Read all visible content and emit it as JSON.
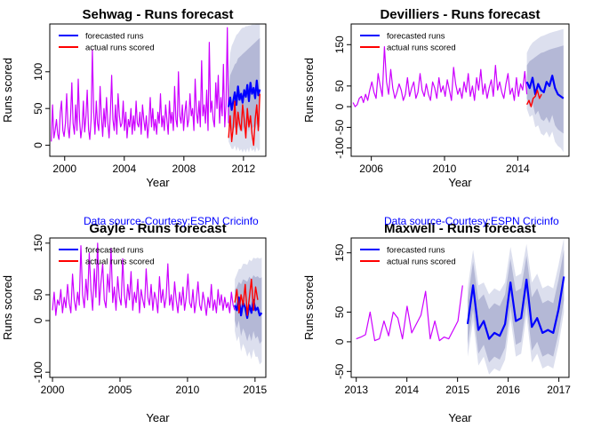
{
  "figure": {
    "source_note": "Data source-Courtesy:ESPN Cricinfo",
    "source_color": "#0000ff",
    "colors": {
      "history": "#cc00ff",
      "forecast": "#0000ff",
      "actual": "#ff0000",
      "band80": "#b4b8d6",
      "band95": "#dcdfee"
    }
  },
  "chart_data": [
    {
      "type": "line",
      "title": "Sehwag - Runs forecast",
      "xlabel": "Year",
      "ylabel": "Runs scored",
      "xlim": [
        1999,
        2013.5
      ],
      "ylim": [
        -15,
        165
      ],
      "xticks": [
        2000,
        2004,
        2008,
        2012
      ],
      "yticks": [
        0,
        50,
        100
      ],
      "legend": {
        "position": "top-left",
        "entries": [
          "forecasted runs",
          "actual runs scored"
        ]
      },
      "history": {
        "x_start": 1999.1,
        "x_end": 2011.0,
        "values": [
          5,
          55,
          10,
          20,
          35,
          15,
          8,
          45,
          60,
          20,
          12,
          30,
          70,
          25,
          10,
          40,
          85,
          30,
          15,
          55,
          20,
          90,
          35,
          10,
          25,
          60,
          18,
          40,
          75,
          22,
          8,
          35,
          130,
          45,
          15,
          60,
          30,
          20,
          80,
          40,
          12,
          50,
          25,
          65,
          30,
          10,
          45,
          95,
          35,
          20,
          55,
          15,
          70,
          40,
          25,
          30,
          60,
          20,
          45,
          10,
          35,
          25,
          50,
          15,
          40,
          20,
          60,
          30,
          25,
          45,
          15,
          55,
          35,
          20,
          40,
          10,
          30,
          65,
          25,
          50,
          20,
          35,
          15,
          45,
          30,
          70,
          25,
          40,
          20,
          55,
          35,
          15,
          60,
          30,
          45,
          20,
          80,
          35,
          25,
          100,
          40,
          30,
          55,
          20,
          45,
          60,
          25,
          35,
          70,
          40,
          50,
          20,
          90,
          45,
          30,
          60,
          25,
          115,
          40,
          55,
          30,
          75,
          20,
          140,
          45,
          60,
          35,
          25,
          85,
          50,
          95,
          30,
          65,
          40,
          110,
          25,
          55,
          160,
          30
        ]
      },
      "forecast": {
        "x_start": 2011.0,
        "x_end": 2013.1,
        "values": [
          52,
          65,
          48,
          60,
          72,
          55,
          80,
          62,
          70,
          58,
          75,
          66,
          82,
          60,
          85,
          70,
          78,
          64,
          88,
          68,
          76
        ],
        "band80_high": [
          75,
          95,
          100,
          105,
          110,
          112,
          118,
          120,
          122,
          124,
          126,
          128,
          130,
          132,
          134,
          136,
          138,
          140,
          142,
          144,
          146
        ],
        "band80_low": [
          25,
          28,
          20,
          22,
          25,
          18,
          28,
          20,
          24,
          18,
          25,
          20,
          28,
          18,
          30,
          22,
          26,
          20,
          30,
          22,
          26
        ],
        "band95_high": [
          100,
          125,
          135,
          140,
          145,
          150,
          152,
          155,
          158,
          160,
          160,
          162,
          162,
          163,
          163,
          164,
          164,
          164,
          165,
          165,
          165
        ],
        "band95_low": [
          5,
          0,
          -5,
          -5,
          0,
          -8,
          -2,
          -8,
          -5,
          -10,
          -5,
          -10,
          -4,
          -10,
          -2,
          -8,
          -5,
          -10,
          -2,
          -8,
          -5
        ]
      },
      "actual": {
        "x_start": 2011.0,
        "x_end": 2013.1,
        "values": [
          10,
          40,
          5,
          25,
          60,
          15,
          45,
          30,
          20,
          55,
          35,
          10,
          50,
          25,
          40,
          15,
          0,
          35,
          55,
          20,
          70
        ]
      }
    },
    {
      "type": "line",
      "title": "Devilliers - Runs forecast",
      "xlabel": "Year",
      "ylabel": "Runs scored",
      "xlim": [
        2004.9,
        2016.8
      ],
      "ylim": [
        -120,
        200
      ],
      "xticks": [
        2006,
        2010,
        2014
      ],
      "yticks": [
        -100,
        -50,
        0,
        50,
        150
      ],
      "legend": {
        "position": "top-left",
        "entries": [
          "forecasted runs",
          "actual runs scored"
        ]
      },
      "history": {
        "x_start": 2005.0,
        "x_end": 2014.5,
        "values": [
          10,
          0,
          5,
          20,
          25,
          10,
          30,
          15,
          40,
          60,
          35,
          20,
          80,
          50,
          25,
          145,
          60,
          30,
          90,
          45,
          20,
          35,
          55,
          40,
          15,
          30,
          70,
          25,
          45,
          60,
          20,
          35,
          80,
          40,
          25,
          55,
          30,
          15,
          60,
          45,
          20,
          70,
          35,
          50,
          25,
          65,
          40,
          15,
          95,
          55,
          30,
          45,
          20,
          60,
          35,
          80,
          25,
          50,
          15,
          70,
          40,
          90,
          30,
          55,
          20,
          45,
          65,
          25,
          100,
          40,
          60,
          35,
          20,
          55,
          80,
          30,
          45,
          15,
          70,
          25,
          55,
          40,
          85,
          30
        ]
      },
      "forecast": {
        "x_start": 2014.5,
        "x_end": 2016.5,
        "values": [
          60,
          45,
          70,
          30,
          55,
          40,
          35,
          60,
          50,
          75,
          45,
          30,
          25,
          20
        ],
        "band80_high": [
          100,
          110,
          115,
          120,
          125,
          130,
          132,
          135,
          138,
          140,
          142,
          144,
          146,
          148
        ],
        "band80_low": [
          20,
          0,
          10,
          -20,
          -10,
          -30,
          -35,
          -25,
          -40,
          -20,
          -45,
          -55,
          -60,
          -65
        ],
        "band95_high": [
          130,
          145,
          155,
          160,
          165,
          170,
          172,
          175,
          178,
          180,
          182,
          184,
          186,
          188
        ],
        "band95_low": [
          -5,
          -25,
          -20,
          -50,
          -45,
          -65,
          -70,
          -60,
          -75,
          -60,
          -85,
          -95,
          -100,
          -110
        ]
      },
      "actual": {
        "x_start": 2014.5,
        "x_end": 2015.3,
        "values": [
          5,
          15,
          0,
          20,
          25,
          40,
          20,
          30
        ]
      }
    },
    {
      "type": "line",
      "title": "Gayle - Runs forecast",
      "xlabel": "Year",
      "ylabel": "Runs scored",
      "xlim": [
        1999.8,
        2015.8
      ],
      "ylim": [
        -110,
        160
      ],
      "xticks": [
        2000,
        2005,
        2010,
        2015
      ],
      "yticks": [
        -100,
        0,
        50,
        150
      ],
      "legend": {
        "position": "top-left",
        "entries": [
          "forecasted runs",
          "actual runs scored"
        ]
      },
      "history": {
        "x_start": 2000.0,
        "x_end": 2013.5,
        "values": [
          20,
          55,
          10,
          40,
          30,
          60,
          15,
          45,
          25,
          70,
          35,
          15,
          90,
          40,
          20,
          55,
          30,
          145,
          50,
          25,
          80,
          40,
          130,
          60,
          20,
          100,
          45,
          150,
          30,
          75,
          110,
          40,
          25,
          90,
          55,
          140,
          35,
          65,
          20,
          85,
          45,
          30,
          120,
          50,
          25,
          70,
          40,
          95,
          20,
          55,
          35,
          80,
          15,
          60,
          40,
          25,
          100,
          45,
          30,
          70,
          20,
          55,
          40,
          15,
          85,
          35,
          60,
          25,
          45,
          110,
          30,
          50,
          20,
          75,
          40,
          15,
          55,
          30,
          65,
          20,
          45,
          90,
          35,
          25,
          60,
          15,
          40,
          75,
          30,
          20,
          55,
          35,
          10,
          45,
          25,
          70,
          20,
          40,
          15,
          60,
          30,
          50,
          20,
          45,
          25,
          35,
          15,
          55,
          30,
          20
        ]
      },
      "forecast": {
        "x_start": 2013.5,
        "x_end": 2015.5,
        "values": [
          30,
          20,
          45,
          10,
          35,
          25,
          5,
          30,
          15,
          40,
          20,
          25,
          10,
          15
        ],
        "band80_high": [
          60,
          65,
          75,
          70,
          80,
          78,
          75,
          85,
          80,
          88,
          84,
          86,
          82,
          84
        ],
        "band80_low": [
          0,
          -15,
          0,
          -30,
          -15,
          -25,
          -40,
          -25,
          -40,
          -20,
          -35,
          -30,
          -45,
          -40
        ],
        "band95_high": [
          80,
          90,
          100,
          100,
          110,
          110,
          108,
          118,
          115,
          122,
          120,
          122,
          120,
          122
        ],
        "band95_low": [
          -20,
          -40,
          -30,
          -60,
          -45,
          -55,
          -70,
          -60,
          -75,
          -55,
          -70,
          -70,
          -85,
          -80
        ]
      },
      "actual": {
        "x_start": 2013.5,
        "x_end": 2015.2,
        "values": [
          35,
          60,
          15,
          50,
          30,
          70,
          10,
          45,
          80,
          20,
          65,
          40
        ]
      }
    },
    {
      "type": "line",
      "title": "Maxwell - Runs forecast",
      "xlabel": "Year",
      "ylabel": "Runs scored",
      "xlim": [
        2012.9,
        2017.2
      ],
      "ylim": [
        -60,
        175
      ],
      "xticks": [
        2013,
        2014,
        2015,
        2016,
        2017
      ],
      "yticks": [
        -50,
        0,
        50,
        150
      ],
      "legend": {
        "position": "top-left",
        "entries": [
          "forecasted runs",
          "actual runs scored"
        ]
      },
      "history": {
        "x_start": 2013.0,
        "x_end": 2015.1,
        "values": [
          5,
          8,
          12,
          50,
          2,
          5,
          35,
          10,
          50,
          40,
          5,
          60,
          15,
          30,
          45,
          85,
          5,
          35,
          2,
          8,
          5,
          20,
          35,
          95
        ]
      },
      "forecast": {
        "x_start": 2015.2,
        "x_end": 2017.1,
        "values": [
          30,
          95,
          20,
          35,
          5,
          15,
          10,
          30,
          100,
          35,
          40,
          105,
          25,
          40,
          15,
          20,
          15,
          55,
          110
        ],
        "band80_high": [
          70,
          135,
          70,
          80,
          55,
          65,
          60,
          80,
          140,
          85,
          90,
          145,
          75,
          90,
          65,
          70,
          65,
          105,
          155
        ],
        "band80_low": [
          -5,
          55,
          -20,
          -5,
          -35,
          -25,
          -30,
          -10,
          60,
          -5,
          0,
          65,
          -15,
          0,
          -25,
          -20,
          -25,
          15,
          70
        ],
        "band95_high": [
          90,
          155,
          95,
          100,
          80,
          90,
          85,
          100,
          160,
          110,
          115,
          165,
          100,
          115,
          90,
          95,
          90,
          130,
          175
        ],
        "band95_low": [
          -25,
          35,
          -40,
          -25,
          -55,
          -45,
          -50,
          -30,
          40,
          -25,
          -20,
          45,
          -35,
          -20,
          -45,
          -40,
          -45,
          -5,
          50
        ]
      }
    }
  ]
}
